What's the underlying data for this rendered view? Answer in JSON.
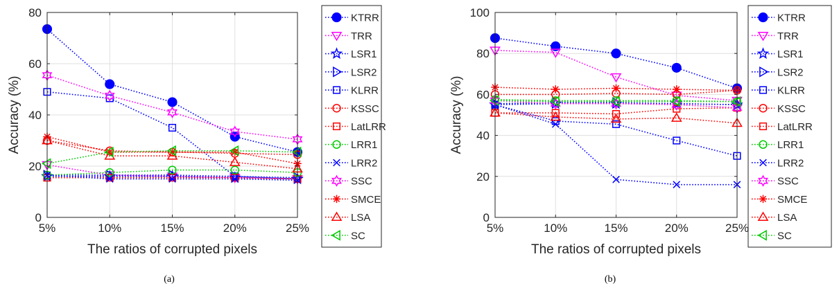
{
  "chart_data": [
    {
      "type": "line",
      "caption": "(a)",
      "xlabel": "The ratios of corrupted pixels",
      "ylabel": "Accuracy (%)",
      "categories": [
        "5%",
        "10%",
        "15%",
        "20%",
        "25%"
      ],
      "ylim": [
        0,
        80
      ],
      "yticks": [
        0,
        20,
        40,
        60,
        80
      ],
      "grid": "on",
      "legend_position": "outside-right",
      "series": [
        {
          "name": "KTRR",
          "color": "#0000ff",
          "marker": "filled-circle",
          "values": [
            73.5,
            52.0,
            45.0,
            31.5,
            25.5
          ]
        },
        {
          "name": "TRR",
          "color": "#ff00ff",
          "marker": "triangle-down",
          "values": [
            20.5,
            16.5,
            16.0,
            15.5,
            15.0
          ]
        },
        {
          "name": "LSR1",
          "color": "#0000ff",
          "marker": "pentagram",
          "values": [
            16.0,
            16.0,
            16.0,
            15.5,
            15.0
          ]
        },
        {
          "name": "LSR2",
          "color": "#0000ff",
          "marker": "triangle-right",
          "values": [
            16.5,
            16.5,
            16.5,
            16.0,
            15.5
          ]
        },
        {
          "name": "KLRR",
          "color": "#0000ff",
          "marker": "square",
          "values": [
            49.0,
            46.5,
            35.0,
            16.0,
            15.0
          ]
        },
        {
          "name": "KSSC",
          "color": "#ff0000",
          "marker": "circle",
          "values": [
            30.0,
            26.0,
            25.5,
            25.0,
            24.5
          ]
        },
        {
          "name": "LatLRR",
          "color": "#ff0000",
          "marker": "square",
          "values": [
            15.5,
            15.5,
            15.5,
            15.5,
            15.0
          ]
        },
        {
          "name": "LRR1",
          "color": "#00cc00",
          "marker": "circle",
          "values": [
            16.5,
            17.5,
            18.5,
            18.5,
            17.5
          ]
        },
        {
          "name": "LRR2",
          "color": "#0000ff",
          "marker": "x",
          "values": [
            16.5,
            15.0,
            15.0,
            15.0,
            14.5
          ]
        },
        {
          "name": "SSC",
          "color": "#ff00ff",
          "marker": "hexagram",
          "values": [
            55.5,
            47.5,
            41.0,
            33.5,
            30.5
          ]
        },
        {
          "name": "SMCE",
          "color": "#ff0000",
          "marker": "asterisk",
          "values": [
            31.5,
            25.5,
            25.5,
            25.5,
            21.0
          ]
        },
        {
          "name": "LSA",
          "color": "#ff0000",
          "marker": "triangle-up",
          "values": [
            30.0,
            24.0,
            24.0,
            21.5,
            19.0
          ]
        },
        {
          "name": "SC",
          "color": "#00cc00",
          "marker": "triangle-left",
          "values": [
            21.0,
            25.5,
            26.0,
            26.0,
            25.5
          ]
        }
      ]
    },
    {
      "type": "line",
      "caption": "(b)",
      "xlabel": "The ratios of corrupted pixels",
      "ylabel": "Accuracy (%)",
      "categories": [
        "5%",
        "10%",
        "15%",
        "20%",
        "25%"
      ],
      "ylim": [
        0,
        100
      ],
      "yticks": [
        0,
        20,
        40,
        60,
        80,
        100
      ],
      "grid": "on",
      "legend_position": "outside-right",
      "series": [
        {
          "name": "KTRR",
          "color": "#0000ff",
          "marker": "filled-circle",
          "values": [
            87.5,
            83.5,
            80.0,
            73.0,
            63.0
          ]
        },
        {
          "name": "TRR",
          "color": "#ff00ff",
          "marker": "triangle-down",
          "values": [
            81.5,
            80.5,
            68.5,
            59.5,
            57.0
          ]
        },
        {
          "name": "LSR1",
          "color": "#0000ff",
          "marker": "pentagram",
          "values": [
            55.0,
            55.5,
            55.5,
            55.5,
            55.0
          ]
        },
        {
          "name": "LSR2",
          "color": "#0000ff",
          "marker": "triangle-right",
          "values": [
            55.5,
            56.0,
            56.0,
            55.5,
            55.0
          ]
        },
        {
          "name": "KLRR",
          "color": "#0000ff",
          "marker": "square",
          "values": [
            55.0,
            47.0,
            45.5,
            37.5,
            30.0
          ]
        },
        {
          "name": "KSSC",
          "color": "#ff0000",
          "marker": "circle",
          "values": [
            60.0,
            60.0,
            60.5,
            60.0,
            62.0
          ]
        },
        {
          "name": "LatLRR",
          "color": "#ff0000",
          "marker": "square",
          "values": [
            51.0,
            51.0,
            50.5,
            53.0,
            53.5
          ]
        },
        {
          "name": "LRR1",
          "color": "#00cc00",
          "marker": "circle",
          "values": [
            57.5,
            57.0,
            57.0,
            57.0,
            56.5
          ]
        },
        {
          "name": "LRR2",
          "color": "#0000ff",
          "marker": "x",
          "values": [
            55.0,
            45.5,
            18.5,
            16.0,
            16.0
          ]
        },
        {
          "name": "SSC",
          "color": "#ff00ff",
          "marker": "hexagram",
          "values": [
            57.0,
            55.5,
            55.5,
            55.0,
            53.5
          ]
        },
        {
          "name": "SMCE",
          "color": "#ff0000",
          "marker": "asterisk",
          "values": [
            63.5,
            62.5,
            63.0,
            62.5,
            62.0
          ]
        },
        {
          "name": "LSA",
          "color": "#ff0000",
          "marker": "triangle-up",
          "values": [
            51.0,
            49.0,
            48.0,
            48.5,
            46.0
          ]
        },
        {
          "name": "SC",
          "color": "#00cc00",
          "marker": "triangle-left",
          "values": [
            57.0,
            56.5,
            56.5,
            56.5,
            56.5
          ]
        }
      ]
    }
  ]
}
